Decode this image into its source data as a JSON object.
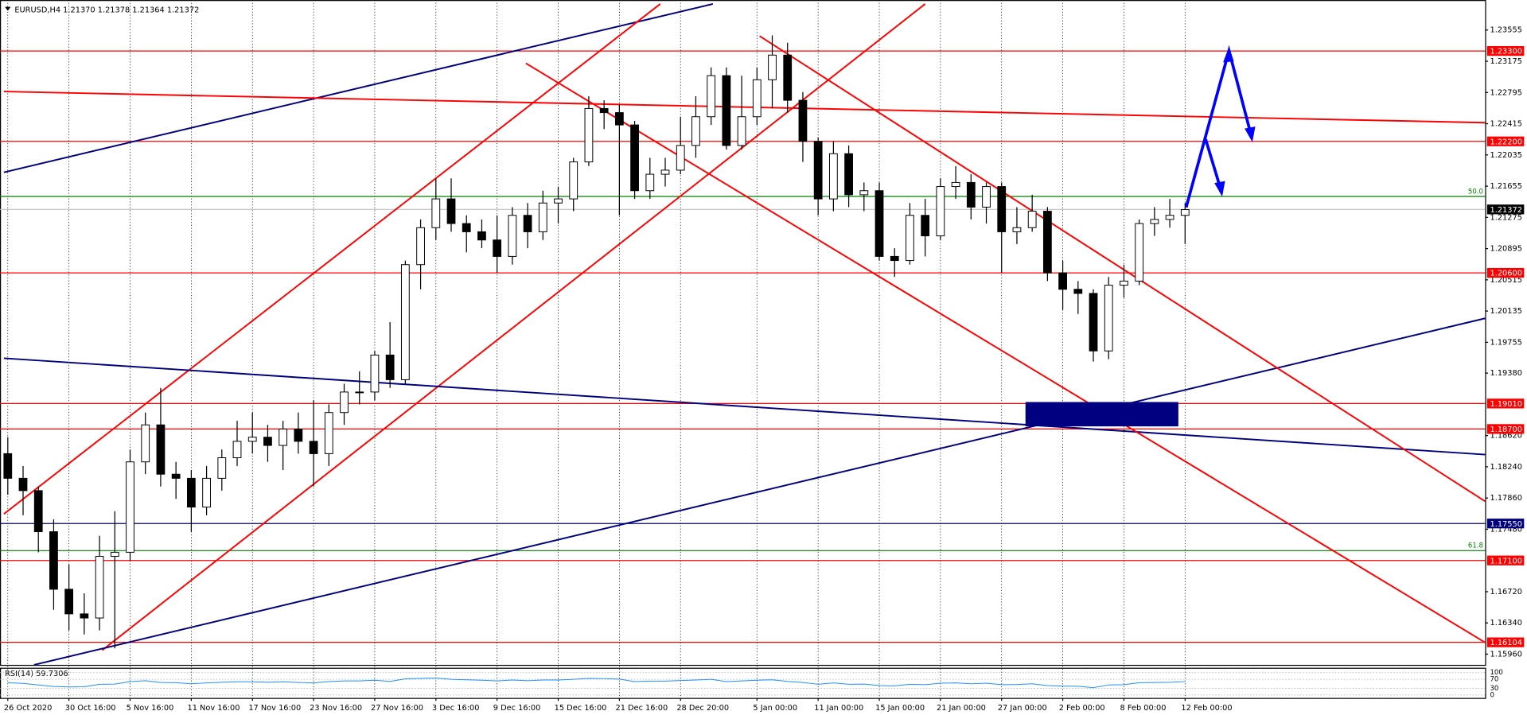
{
  "chart_data": {
    "type": "candlestick",
    "header": "EURUSD,H4  1.21370 1.21378 1.21364 1.21372",
    "categories": [
      "26 Oct 2020",
      null,
      null,
      null,
      "30 Oct 16:00",
      null,
      null,
      null,
      "5 Nov 16:00",
      null,
      null,
      null,
      "11 Nov 16:00",
      null,
      null,
      null,
      "17 Nov 16:00",
      null,
      null,
      null,
      "23 Nov 16:00",
      null,
      null,
      null,
      "27 Nov 16:00",
      null,
      null,
      null,
      "3 Dec 16:00",
      null,
      null,
      null,
      "9 Dec 16:00",
      null,
      null,
      null,
      "15 Dec 16:00",
      null,
      null,
      null,
      "21 Dec 16:00",
      null,
      null,
      null,
      "28 Dec 20:00",
      null,
      null,
      null,
      null,
      "5 Jan 00:00",
      null,
      null,
      null,
      "11 Jan 00:00",
      null,
      null,
      null,
      "15 Jan 00:00",
      null,
      null,
      null,
      "21 Jan 00:00",
      null,
      null,
      null,
      "27 Jan 00:00",
      null,
      null,
      null,
      "2 Feb 00:00",
      null,
      null,
      null,
      "8 Feb 00:00",
      null,
      null,
      null,
      "12 Feb 00:00"
    ],
    "open": [
      1.184,
      1.181,
      1.1795,
      1.1745,
      1.1675,
      1.1645,
      1.164,
      1.1715,
      1.172,
      1.183,
      1.1875,
      1.1815,
      1.181,
      1.1775,
      1.181,
      1.1835,
      1.1855,
      1.186,
      1.185,
      1.187,
      1.1855,
      1.184,
      1.189,
      1.1915,
      1.1915,
      1.196,
      1.193,
      1.207,
      1.2115,
      1.215,
      1.212,
      1.211,
      1.21,
      1.208,
      1.213,
      1.211,
      1.2145,
      1.215,
      1.2195,
      1.226,
      1.2255,
      1.224,
      1.216,
      1.218,
      1.2185,
      1.2215,
      1.225,
      1.23,
      1.2215,
      1.225,
      1.2295,
      1.2325,
      1.227,
      1.222,
      1.215,
      1.2205,
      1.2155,
      1.216,
      1.208,
      1.2075,
      1.213,
      1.2105,
      1.2165,
      1.217,
      1.214,
      1.2165,
      1.211,
      1.2115,
      1.2135,
      1.206,
      1.204,
      1.2035,
      1.1965,
      1.2045,
      1.205,
      1.212,
      1.2125,
      1.213
    ],
    "high": [
      1.186,
      1.1825,
      1.18,
      1.176,
      1.1705,
      1.167,
      1.174,
      1.177,
      1.1845,
      1.189,
      1.192,
      1.183,
      1.182,
      1.1825,
      1.1845,
      1.188,
      1.189,
      1.1875,
      1.188,
      1.189,
      1.1905,
      1.19,
      1.1925,
      1.194,
      1.1965,
      1.2,
      1.2075,
      1.2125,
      1.2175,
      1.2175,
      1.213,
      1.2125,
      1.213,
      1.214,
      1.2145,
      1.216,
      1.2165,
      1.22,
      1.2275,
      1.227,
      1.2265,
      1.2245,
      1.22,
      1.22,
      1.225,
      1.2275,
      1.231,
      1.231,
      1.23,
      1.231,
      1.2349,
      1.234,
      1.228,
      1.2225,
      1.222,
      1.2215,
      1.217,
      1.217,
      1.209,
      1.2145,
      1.215,
      1.2175,
      1.219,
      1.218,
      1.217,
      1.217,
      1.214,
      1.2155,
      1.214,
      1.2075,
      1.205,
      1.204,
      1.2055,
      1.207,
      1.2125,
      1.214,
      1.215,
      1.2145
    ],
    "low": [
      1.179,
      1.1765,
      1.172,
      1.165,
      1.1625,
      1.162,
      1.1625,
      1.1603,
      1.171,
      1.1815,
      1.18,
      1.1785,
      1.1745,
      1.1765,
      1.1795,
      1.1825,
      1.184,
      1.183,
      1.182,
      1.184,
      1.18,
      1.1825,
      1.1875,
      1.19,
      1.1905,
      1.192,
      1.1925,
      1.204,
      1.21,
      1.211,
      1.2085,
      1.209,
      1.206,
      1.207,
      1.209,
      1.21,
      1.212,
      1.2135,
      1.219,
      1.2235,
      1.213,
      1.215,
      1.215,
      1.2165,
      1.218,
      1.22,
      1.224,
      1.221,
      1.221,
      1.224,
      1.226,
      1.2255,
      1.2195,
      1.213,
      1.2135,
      1.214,
      1.2135,
      1.2075,
      1.2055,
      1.207,
      1.208,
      1.21,
      1.215,
      1.2125,
      1.212,
      1.206,
      1.2095,
      1.211,
      1.205,
      1.2015,
      1.201,
      1.1952,
      1.1955,
      1.203,
      1.2045,
      1.2105,
      1.2115,
      1.2095
    ],
    "close": [
      1.181,
      1.1795,
      1.1745,
      1.1675,
      1.1645,
      1.164,
      1.1715,
      1.172,
      1.183,
      1.1875,
      1.1815,
      1.181,
      1.1775,
      1.181,
      1.1835,
      1.1855,
      1.186,
      1.185,
      1.187,
      1.1855,
      1.184,
      1.189,
      1.1915,
      1.1915,
      1.196,
      1.193,
      1.207,
      1.2115,
      1.215,
      1.212,
      1.211,
      1.21,
      1.208,
      1.213,
      1.211,
      1.2145,
      1.215,
      1.2195,
      1.226,
      1.2255,
      1.224,
      1.216,
      1.218,
      1.2185,
      1.2215,
      1.225,
      1.23,
      1.2215,
      1.225,
      1.2295,
      1.2325,
      1.227,
      1.222,
      1.215,
      1.2205,
      1.2155,
      1.216,
      1.208,
      1.2075,
      1.213,
      1.2105,
      1.2165,
      1.217,
      1.214,
      1.2165,
      1.211,
      1.2115,
      1.2135,
      1.206,
      1.204,
      1.2035,
      1.1965,
      1.2045,
      1.205,
      1.212,
      1.2125,
      1.213,
      1.2137
    ],
    "ylim": [
      1.1583,
      1.2392
    ],
    "yticks": [
      1.23555,
      1.23175,
      1.22795,
      1.22415,
      1.22035,
      1.21655,
      1.21275,
      1.20895,
      1.20515,
      1.20135,
      1.19755,
      {
        "value": 1.1938,
        "label": "1.19380"
      },
      {
        "value": 1.1862,
        "label": "1.18620"
      },
      {
        "value": 1.1824,
        "label": "1.18240"
      },
      {
        "value": 1.1786,
        "label": "1.17860"
      },
      {
        "value": 1.1748,
        "label": "1.17480"
      },
      {
        "value": 1.1672,
        "label": "1.16720"
      },
      {
        "value": 1.1634,
        "label": "1.16340"
      },
      {
        "value": 1.1596,
        "label": "1.15960"
      }
    ],
    "levels": [
      {
        "value": 1.233,
        "label": "1.23300",
        "color": "#ff0000"
      },
      {
        "value": 1.222,
        "label": "1.22200",
        "color": "#ff0000"
      },
      {
        "value": 1.206,
        "label": "1.20600",
        "color": "#ff0000"
      },
      {
        "value": 1.1901,
        "label": "1.19010",
        "color": "#ff0000"
      },
      {
        "value": 1.187,
        "label": "1.18700",
        "color": "#ff0000"
      },
      {
        "value": 1.1755,
        "label": "1.17550",
        "color": "#000080"
      },
      {
        "value": 1.171,
        "label": "1.17100",
        "color": "#ff0000"
      },
      {
        "value": 1.16104,
        "label": "1.16104",
        "color": "#ff0000"
      }
    ],
    "fibo": [
      {
        "value": 1.2153,
        "label": "50.0",
        "color": "#008000"
      },
      {
        "value": 1.1722,
        "label": "61.8",
        "color": "#008000"
      }
    ],
    "price": {
      "value": 1.21372,
      "label": "1.21372"
    },
    "rsi": {
      "name": "RSI(14)",
      "ylim": [
        0,
        100
      ],
      "yticks": [
        100,
        70,
        30,
        0
      ],
      "color": "#1e90ff",
      "values": [
        55,
        52,
        45,
        38,
        36,
        37,
        48,
        49,
        60,
        64,
        56,
        55,
        50,
        54,
        57,
        59,
        59,
        57,
        59,
        56,
        54,
        60,
        63,
        63,
        66,
        61,
        72,
        74,
        76,
        70,
        68,
        66,
        63,
        67,
        64,
        67,
        67,
        70,
        74,
        73,
        71,
        60,
        62,
        62,
        65,
        67,
        70,
        60,
        63,
        66,
        68,
        61,
        56,
        48,
        54,
        48,
        49,
        42,
        41,
        48,
        46,
        53,
        54,
        50,
        53,
        46,
        47,
        50,
        42,
        40,
        39,
        33,
        45,
        46,
        55,
        56,
        57,
        59.7306
      ]
    }
  }
}
